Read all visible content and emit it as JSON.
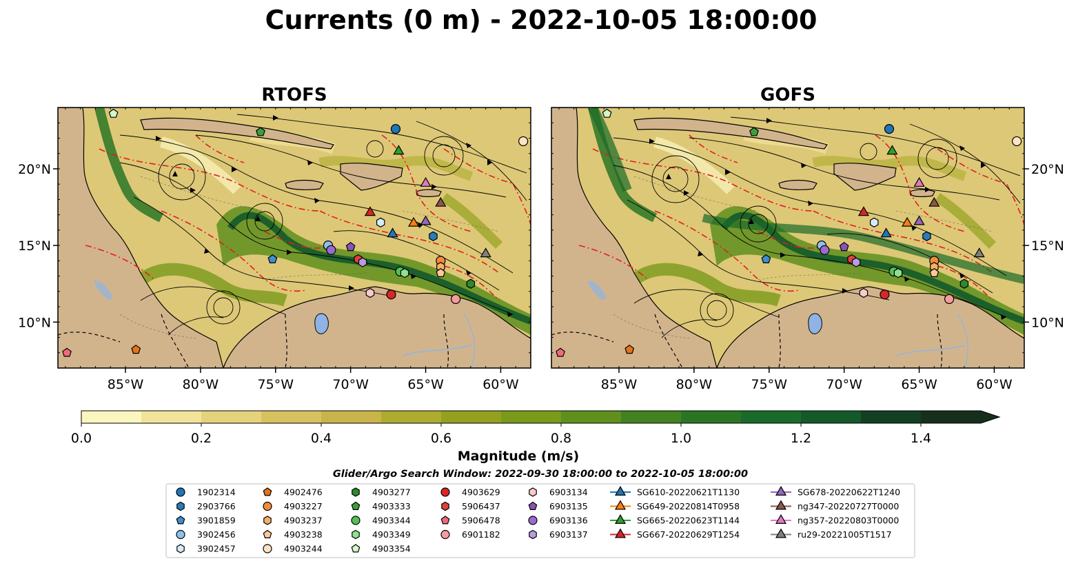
{
  "chart_data": {
    "type": "map",
    "title": "Currents (0 m) - 2022-10-05 18:00:00",
    "panels": [
      {
        "title": "RTOFS"
      },
      {
        "title": "GOFS"
      }
    ],
    "lon_range": [
      -89.5,
      -58.0
    ],
    "lat_range": [
      7.0,
      24.0
    ],
    "x_ticks": [
      "85°W",
      "80°W",
      "75°W",
      "70°W",
      "65°W",
      "60°W"
    ],
    "x_tick_values": [
      -85,
      -80,
      -75,
      -70,
      -65,
      -60
    ],
    "y_ticks": [
      "10°N",
      "15°N",
      "20°N"
    ],
    "y_tick_values": [
      10,
      15,
      20
    ],
    "colorbar": {
      "label": "Magnitude (m/s)",
      "min": 0.0,
      "max": 1.5,
      "extend": "max",
      "tick_labels": [
        "0.0",
        "0.2",
        "0.4",
        "0.6",
        "0.8",
        "1.0",
        "1.2",
        "1.4"
      ],
      "tick_values": [
        0.0,
        0.2,
        0.4,
        0.6,
        0.8,
        1.0,
        1.2,
        1.4
      ],
      "colors": [
        "#fbf5c0",
        "#f2e39a",
        "#e5d27c",
        "#d8c25f",
        "#c8b44a",
        "#aeac2e",
        "#93a11f",
        "#7a9a1a",
        "#5f8f1d",
        "#428221",
        "#2a7524",
        "#1a6a2a",
        "#13592a",
        "#133f22",
        "#162f1c"
      ]
    },
    "search_window": "Glider/Argo Search Window: 2022-09-30 18:00:00 to 2022-10-05 18:00:00",
    "legend": [
      {
        "label": "1902314",
        "marker": "circle",
        "color": "#1f77b4",
        "lon": -67.0,
        "lat": 22.6
      },
      {
        "label": "2903766",
        "marker": "hexagon",
        "color": "#2b7bb9",
        "lon": -64.5,
        "lat": 15.6
      },
      {
        "label": "3901859",
        "marker": "pentagon",
        "color": "#3d8fd0",
        "lon": -75.2,
        "lat": 14.1
      },
      {
        "label": "3902456",
        "marker": "circle",
        "color": "#8ec0ea",
        "lon": -71.5,
        "lat": 15.0
      },
      {
        "label": "3902457",
        "marker": "hexagon",
        "color": "#d4ecfa",
        "lon": -68.0,
        "lat": 16.5
      },
      {
        "label": "4902476",
        "marker": "pentagon",
        "color": "#e5731a",
        "lon": -84.3,
        "lat": 8.2
      },
      {
        "label": "4903227",
        "marker": "circle",
        "color": "#f48b3a",
        "lon": -64.0,
        "lat": 14.0
      },
      {
        "label": "4903237",
        "marker": "hexagon",
        "color": "#f6b06a",
        "lon": -64.0,
        "lat": 13.6
      },
      {
        "label": "4903238",
        "marker": "pentagon",
        "color": "#fcc89a",
        "lon": -64.0,
        "lat": 13.2
      },
      {
        "label": "4903244",
        "marker": "circle",
        "color": "#fde3c4",
        "lon": -58.5,
        "lat": 21.8
      },
      {
        "label": "4903277",
        "marker": "hexagon",
        "color": "#2c8a2c",
        "lon": -62.0,
        "lat": 12.5
      },
      {
        "label": "4903333",
        "marker": "pentagon",
        "color": "#3aa03a",
        "lon": -76.0,
        "lat": 22.4
      },
      {
        "label": "4903344",
        "marker": "circle",
        "color": "#55c055",
        "lon": -66.7,
        "lat": 13.3
      },
      {
        "label": "4903349",
        "marker": "hexagon",
        "color": "#90e090",
        "lon": -66.4,
        "lat": 13.2
      },
      {
        "label": "4903354",
        "marker": "pentagon",
        "color": "#d2f7c8",
        "lon": -85.8,
        "lat": 23.6
      },
      {
        "label": "4903629",
        "marker": "circle",
        "color": "#d62728",
        "lon": -67.3,
        "lat": 11.8
      },
      {
        "label": "5906437",
        "marker": "hexagon",
        "color": "#e04040",
        "lon": -69.5,
        "lat": 14.1
      },
      {
        "label": "5906478",
        "marker": "pentagon",
        "color": "#ef6a7a",
        "lon": -88.9,
        "lat": 8.0
      },
      {
        "label": "6901182",
        "marker": "circle",
        "color": "#f59b9b",
        "lon": -63.0,
        "lat": 11.5
      },
      {
        "label": "6903134",
        "marker": "hexagon",
        "color": "#fbc9c9",
        "lon": -68.7,
        "lat": 11.9
      },
      {
        "label": "6903135",
        "marker": "pentagon",
        "color": "#8855b5",
        "lon": -70.0,
        "lat": 14.9
      },
      {
        "label": "6903136",
        "marker": "circle",
        "color": "#9a6ad0",
        "lon": -71.3,
        "lat": 14.7
      },
      {
        "label": "6903137",
        "marker": "hexagon",
        "color": "#b99be0",
        "lon": -69.2,
        "lat": 13.9
      },
      {
        "label": "SG610-20220621T1130",
        "marker": "triangle",
        "color": "#1f77b4",
        "lon": -67.2,
        "lat": 15.8
      },
      {
        "label": "SG649-20220814T0958",
        "marker": "triangle",
        "color": "#ff7f0e",
        "lon": -65.8,
        "lat": 16.5
      },
      {
        "label": "SG665-20220623T1144",
        "marker": "triangle",
        "color": "#2ca02c",
        "lon": -66.8,
        "lat": 21.2
      },
      {
        "label": "SG667-20220629T1254",
        "marker": "triangle",
        "color": "#d62728",
        "lon": -68.7,
        "lat": 17.2
      },
      {
        "label": "SG678-20220622T1240",
        "marker": "triangle",
        "color": "#9467bd",
        "lon": -65.0,
        "lat": 16.6
      },
      {
        "label": "ng347-20220727T0000",
        "marker": "triangle",
        "color": "#8c564b",
        "lon": -64.0,
        "lat": 17.8
      },
      {
        "label": "ng357-20220803T0000",
        "marker": "triangle",
        "color": "#e377c2",
        "lon": -65.0,
        "lat": 19.1
      },
      {
        "label": "ru29-20221005T1517",
        "marker": "triangle",
        "color": "#7f7f7f",
        "lon": -61.0,
        "lat": 14.5
      }
    ]
  }
}
